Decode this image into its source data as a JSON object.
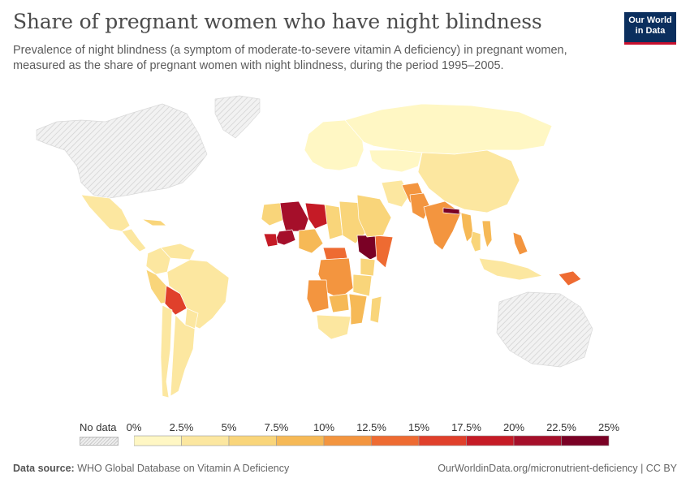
{
  "header": {
    "title": "Share of pregnant women who have night blindness",
    "subtitle": "Prevalence of night blindness (a symptom of moderate-to-severe vitamin A deficiency) in pregnant women, measured as the share of pregnant women with night blindness, during the period 1995–2005.",
    "logo_line1": "Our World",
    "logo_line2": "in Data"
  },
  "legend": {
    "nodata_label": "No data",
    "ticks": [
      "0%",
      "2.5%",
      "5%",
      "7.5%",
      "10%",
      "12.5%",
      "15%",
      "17.5%",
      "20%",
      "22.5%",
      "25%"
    ],
    "colors": [
      "#fff7c4",
      "#fce7a0",
      "#f9d57a",
      "#f6b956",
      "#f3953f",
      "#ee6b32",
      "#e0402b",
      "#c51b26",
      "#a50f2a",
      "#7a0125"
    ],
    "nodata_color": "#e6e6e6"
  },
  "footer": {
    "source_label": "Data source:",
    "source_text": "WHO Global Database on Vitamin A Deficiency",
    "url_text": "OurWorldinData.org/micronutrient-deficiency | CC BY"
  },
  "map_data": {
    "metric": "share of pregnant women with night blindness (%)",
    "regions": [
      {
        "name": "North America",
        "value": null
      },
      {
        "name": "Greenland",
        "value": null
      },
      {
        "name": "Mexico",
        "value": 3
      },
      {
        "name": "Central America",
        "value": 4
      },
      {
        "name": "Cuba",
        "value": 5
      },
      {
        "name": "Colombia",
        "value": 4
      },
      {
        "name": "Venezuela",
        "value": 3
      },
      {
        "name": "Peru",
        "value": 6
      },
      {
        "name": "Brazil",
        "value": 3
      },
      {
        "name": "Bolivia",
        "value": 16
      },
      {
        "name": "Paraguay",
        "value": 4
      },
      {
        "name": "Argentina",
        "value": 3
      },
      {
        "name": "Chile",
        "value": 3
      },
      {
        "name": "Europe",
        "value": 2
      },
      {
        "name": "Russia",
        "value": 2
      },
      {
        "name": "Mauritania",
        "value": 6
      },
      {
        "name": "Mali",
        "value": 20
      },
      {
        "name": "Niger",
        "value": 18
      },
      {
        "name": "Chad",
        "value": 6
      },
      {
        "name": "Burkina Faso",
        "value": 22
      },
      {
        "name": "Guinea",
        "value": 19
      },
      {
        "name": "Nigeria",
        "value": 8
      },
      {
        "name": "Sudan",
        "value": 5
      },
      {
        "name": "Ethiopia",
        "value": 24
      },
      {
        "name": "Somalia",
        "value": 14
      },
      {
        "name": "Kenya",
        "value": 5
      },
      {
        "name": "Central African Republic",
        "value": 14
      },
      {
        "name": "DR Congo",
        "value": 12
      },
      {
        "name": "Tanzania",
        "value": 6
      },
      {
        "name": "Angola",
        "value": 11
      },
      {
        "name": "Zambia",
        "value": 8
      },
      {
        "name": "Mozambique",
        "value": 9
      },
      {
        "name": "Madagascar",
        "value": 7
      },
      {
        "name": "South Africa",
        "value": 4
      },
      {
        "name": "Saudi Arabia",
        "value": 5
      },
      {
        "name": "Iran",
        "value": 3
      },
      {
        "name": "Afghanistan",
        "value": 12
      },
      {
        "name": "Pakistan",
        "value": 10
      },
      {
        "name": "India",
        "value": 11
      },
      {
        "name": "Nepal",
        "value": 23
      },
      {
        "name": "Myanmar",
        "value": 8
      },
      {
        "name": "Thailand",
        "value": 5
      },
      {
        "name": "Vietnam",
        "value": 9
      },
      {
        "name": "Philippines",
        "value": 10
      },
      {
        "name": "China",
        "value": 3
      },
      {
        "name": "Kazakhstan",
        "value": 2
      },
      {
        "name": "Indonesia",
        "value": 3
      },
      {
        "name": "Papua New Guinea",
        "value": 13
      },
      {
        "name": "Australia",
        "value": null
      }
    ]
  }
}
